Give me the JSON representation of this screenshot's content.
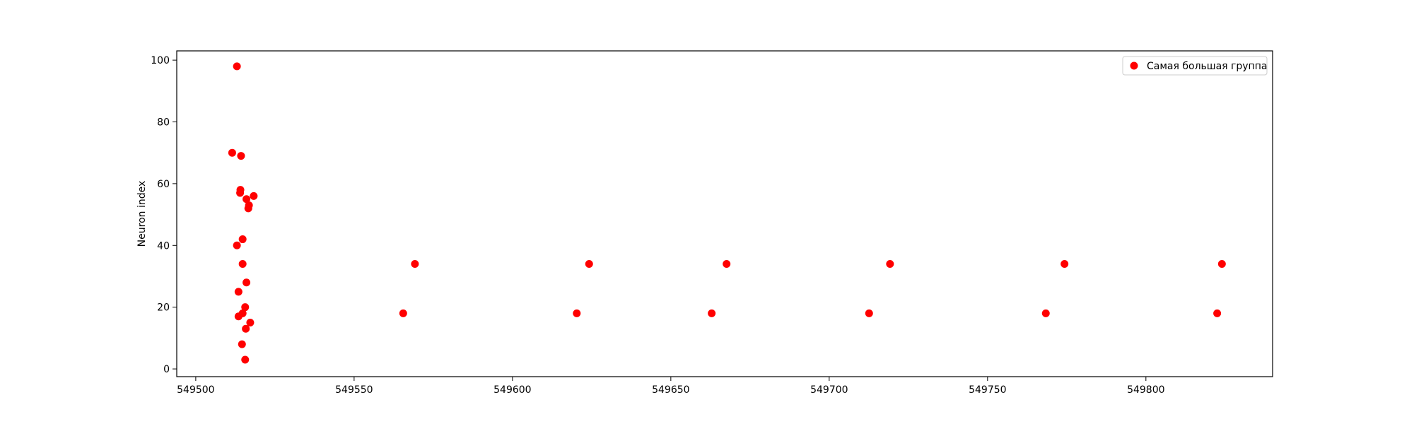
{
  "chart_data": {
    "type": "scatter",
    "title": "",
    "xlabel": "",
    "ylabel": "Neuron index",
    "xlim": [
      549494,
      549840
    ],
    "ylim": [
      -2.5,
      103
    ],
    "xticks": [
      549500,
      549550,
      549600,
      549650,
      549700,
      549750,
      549800
    ],
    "yticks": [
      0,
      20,
      40,
      60,
      80,
      100
    ],
    "grid": false,
    "legend_position": "top-right",
    "series": [
      {
        "name": "Самая большая группа",
        "color": "#ff0000",
        "points": [
          [
            549513.0,
            98
          ],
          [
            549511.5,
            70
          ],
          [
            549514.3,
            69
          ],
          [
            549514.1,
            58
          ],
          [
            549514.0,
            57
          ],
          [
            549518.3,
            56
          ],
          [
            549516.0,
            55
          ],
          [
            549516.8,
            53
          ],
          [
            549516.6,
            52
          ],
          [
            549514.8,
            42
          ],
          [
            549513.0,
            40
          ],
          [
            549514.8,
            34
          ],
          [
            549516.0,
            28
          ],
          [
            549513.5,
            25
          ],
          [
            549515.6,
            20
          ],
          [
            549514.8,
            18
          ],
          [
            549513.5,
            17
          ],
          [
            549517.2,
            15
          ],
          [
            549515.8,
            13
          ],
          [
            549514.6,
            8
          ],
          [
            549515.6,
            3
          ],
          [
            549569.2,
            34
          ],
          [
            549565.5,
            18
          ],
          [
            549624.2,
            34
          ],
          [
            549620.3,
            18
          ],
          [
            549667.6,
            34
          ],
          [
            549662.9,
            18
          ],
          [
            549719.2,
            34
          ],
          [
            549712.6,
            18
          ],
          [
            549774.3,
            34
          ],
          [
            549768.4,
            18
          ],
          [
            549824.0,
            34
          ],
          [
            549822.5,
            18
          ]
        ]
      }
    ]
  }
}
